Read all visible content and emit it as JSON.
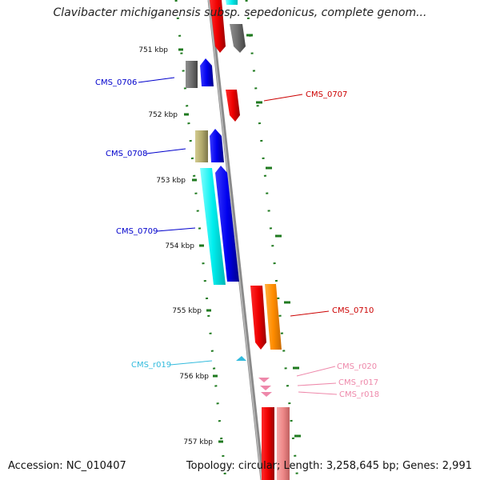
{
  "title": "Clavibacter michiganensis subsp. sepedonicus, complete genom...",
  "footer": {
    "accession": "Accession: NC_010407",
    "summary": "Topology: circular; Length: 3,258,645 bp; Genes: 2,991"
  },
  "ruler": {
    "labels": [
      "751 kbp",
      "752 kbp",
      "753 kbp",
      "754 kbp",
      "755 kbp",
      "756 kbp",
      "757 kbp"
    ],
    "tick_color": "#1f7a1f"
  },
  "backbone_color": "#888888",
  "features": [
    {
      "name": "CMS_0706",
      "color": "#0000cc"
    },
    {
      "name": "CMS_0707",
      "color": "#cc0000"
    },
    {
      "name": "CMS_0708",
      "color": "#0000cc"
    },
    {
      "name": "CMS_0709",
      "color": "#0000cc"
    },
    {
      "name": "CMS_0710",
      "color": "#cc0000"
    },
    {
      "name": "CMS_r019",
      "color": "#33bbdd"
    },
    {
      "name": "CMS_r020",
      "color": "#ee88aa"
    },
    {
      "name": "CMS_r017",
      "color": "#ee88aa"
    },
    {
      "name": "CMS_r018",
      "color": "#ee88aa"
    }
  ]
}
